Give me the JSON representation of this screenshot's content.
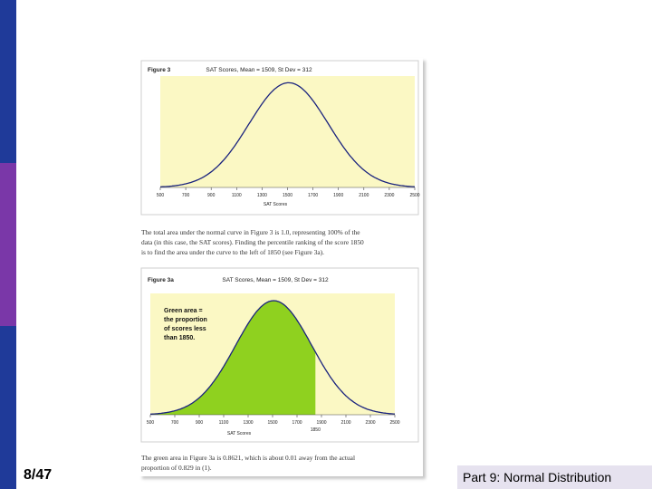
{
  "sidebar": {
    "colors": [
      "#1f3a99",
      "#7a37a8",
      "#1f3a99"
    ]
  },
  "page_number": "8/47",
  "footer_title": "Part 9: Normal Distribution",
  "paragraph_1": [
    "The total area under the normal curve in Figure 3 is 1.0, representing 100% of the",
    "data (in this case, the SAT scores). Finding the percentile ranking of the score 1850",
    "is to find the area under the curve to the left of 1850 (see Figure 3a)."
  ],
  "paragraph_2": [
    "The green area in Figure 3a is 0.8621, which is about 0.01 away from the actual",
    "proportion of 0.829 in (1)."
  ],
  "chart_data": [
    {
      "type": "area",
      "figure_label": "Figure 3",
      "title": "SAT Scores, Mean = 1509, St Dev = 312",
      "xlabel": "SAT Scores",
      "ylabel": "",
      "xlim": [
        500,
        2500
      ],
      "x_ticks": [
        "500",
        "700",
        "900",
        "1100",
        "1300",
        "1500",
        "1700",
        "1900",
        "2100",
        "2300",
        "2500"
      ],
      "distribution": {
        "name": "normal",
        "mean": 1509,
        "sd": 312
      },
      "plot_bg": "#fbf8c4",
      "curve_color": "#1a237e",
      "grid": false
    },
    {
      "type": "area",
      "figure_label": "Figure 3a",
      "title": "SAT Scores, Mean = 1509, St Dev = 312",
      "xlabel": "SAT Scores",
      "ylabel": "",
      "xlim": [
        500,
        2500
      ],
      "x_ticks": [
        "500",
        "700",
        "900",
        "1100",
        "1300",
        "1500",
        "1700",
        "1900",
        "2100",
        "2300",
        "2500"
      ],
      "distribution": {
        "name": "normal",
        "mean": 1509,
        "sd": 312
      },
      "shade_to": 1850,
      "shade_label": "1850",
      "shaded_area": 0.8621,
      "shade_color": "#8fd11f",
      "annotation": [
        "Green area =",
        "the proportion",
        "of scores less",
        "than 1850."
      ],
      "plot_bg": "#fbf8c4",
      "curve_color": "#1a237e",
      "grid": false
    }
  ]
}
